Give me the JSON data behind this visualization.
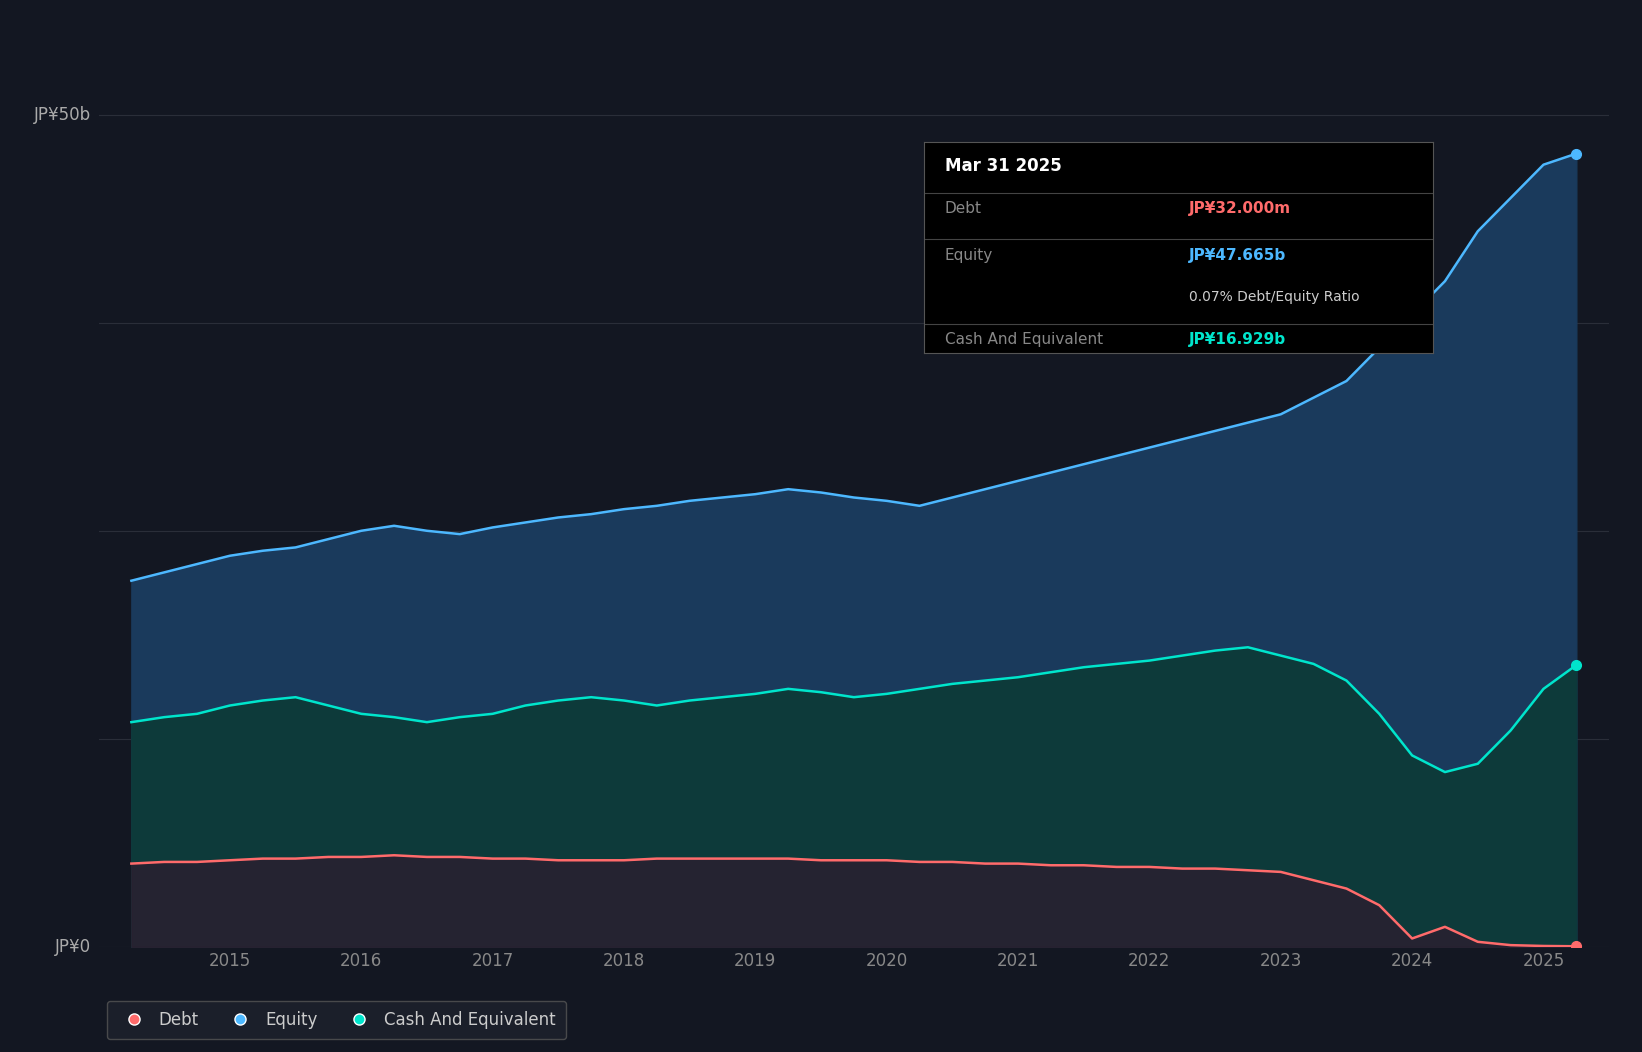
{
  "background_color": "#131722",
  "plot_bg_color": "#131722",
  "ylabel_50b": "JP¥50b",
  "ylabel_0": "JP¥0",
  "x_ticks": [
    2015,
    2016,
    2017,
    2018,
    2019,
    2020,
    2021,
    2022,
    2023,
    2024,
    2025
  ],
  "tooltip_title": "Mar 31 2025",
  "tooltip_rows": [
    [
      "Debt",
      "JP¥32.000m",
      "#ff6b6b"
    ],
    [
      "Equity",
      "JP¥47.665b",
      "#4db8ff"
    ],
    [
      "",
      "0.07% Debt/Equity Ratio",
      "#cccccc"
    ],
    [
      "Cash And Equivalent",
      "JP¥16.929b",
      "#00e5cc"
    ]
  ],
  "equity_color": "#4db8ff",
  "equity_fill": "#1a3a5c",
  "debt_color": "#ff6b6b",
  "cash_color": "#00e5cc",
  "cash_fill": "#0d3a3a",
  "grid_color": "#2a2e39",
  "legend_bg": "#1e222d",
  "years": [
    2014.25,
    2014.5,
    2014.75,
    2015.0,
    2015.25,
    2015.5,
    2015.75,
    2016.0,
    2016.25,
    2016.5,
    2016.75,
    2017.0,
    2017.25,
    2017.5,
    2017.75,
    2018.0,
    2018.25,
    2018.5,
    2018.75,
    2019.0,
    2019.25,
    2019.5,
    2019.75,
    2020.0,
    2020.25,
    2020.5,
    2020.75,
    2021.0,
    2021.25,
    2021.5,
    2021.75,
    2022.0,
    2022.25,
    2022.5,
    2022.75,
    2023.0,
    2023.25,
    2023.5,
    2023.75,
    2024.0,
    2024.25,
    2024.5,
    2024.75,
    2025.0,
    2025.25
  ],
  "equity": [
    22.0,
    22.5,
    23.0,
    23.5,
    23.8,
    24.0,
    24.5,
    25.0,
    25.3,
    25.0,
    24.8,
    25.2,
    25.5,
    25.8,
    26.0,
    26.3,
    26.5,
    26.8,
    27.0,
    27.2,
    27.5,
    27.3,
    27.0,
    26.8,
    26.5,
    27.0,
    27.5,
    28.0,
    28.5,
    29.0,
    29.5,
    30.0,
    30.5,
    31.0,
    31.5,
    32.0,
    33.0,
    34.0,
    36.0,
    38.0,
    40.0,
    43.0,
    45.0,
    47.0,
    47.665
  ],
  "cash": [
    13.5,
    13.8,
    14.0,
    14.5,
    14.8,
    15.0,
    14.5,
    14.0,
    13.8,
    13.5,
    13.8,
    14.0,
    14.5,
    14.8,
    15.0,
    14.8,
    14.5,
    14.8,
    15.0,
    15.2,
    15.5,
    15.3,
    15.0,
    15.2,
    15.5,
    15.8,
    16.0,
    16.2,
    16.5,
    16.8,
    17.0,
    17.2,
    17.5,
    17.8,
    18.0,
    17.5,
    17.0,
    16.0,
    14.0,
    11.5,
    10.5,
    11.0,
    13.0,
    15.5,
    16.929
  ],
  "debt": [
    5.0,
    5.1,
    5.1,
    5.2,
    5.3,
    5.3,
    5.4,
    5.4,
    5.5,
    5.4,
    5.4,
    5.3,
    5.3,
    5.2,
    5.2,
    5.2,
    5.3,
    5.3,
    5.3,
    5.3,
    5.3,
    5.2,
    5.2,
    5.2,
    5.1,
    5.1,
    5.0,
    5.0,
    4.9,
    4.9,
    4.8,
    4.8,
    4.7,
    4.7,
    4.6,
    4.5,
    4.0,
    3.5,
    2.5,
    0.5,
    1.2,
    0.3,
    0.1,
    0.05,
    0.032
  ],
  "ylim": [
    0,
    55
  ],
  "xlim": [
    2014.0,
    2025.5
  ]
}
